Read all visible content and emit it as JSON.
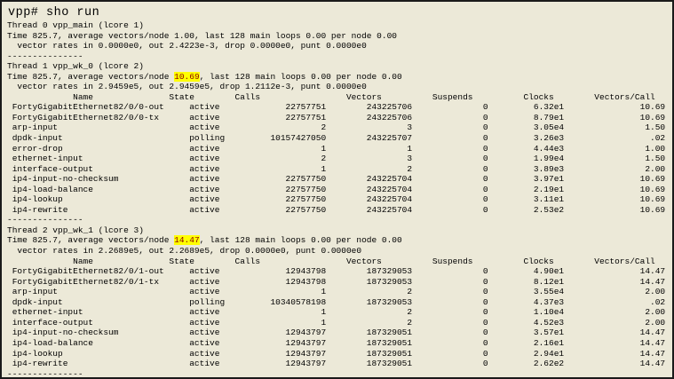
{
  "terminal": {
    "prompt_line": "vpp# sho run",
    "colors": {
      "background": "#ece9d8",
      "text": "#000000",
      "border": "#1a1a1a",
      "highlight_bg": "#ffff00",
      "highlight_text": "#8b0000"
    },
    "separator": "---------------",
    "table_headers": [
      "Name",
      "State",
      "Calls",
      "Vectors",
      "Suspends",
      "Clocks",
      "Vectors/Call"
    ],
    "threads": [
      {
        "title": "Thread 0 vpp_main (lcore 1)",
        "time": {
          "pre": "Time 825.7, average vectors/node ",
          "value": "1.00",
          "highlighted": false,
          "post": ", last 128 main loops 0.00 per node 0.00"
        },
        "rates": "vector rates in 0.0000e0, out 2.4223e-3, drop 0.0000e0, punt 0.0000e0",
        "rows": []
      },
      {
        "title": "Thread 1 vpp_wk_0 (lcore 2)",
        "time": {
          "pre": "Time 825.7, average vectors/node ",
          "value": "10.69",
          "highlighted": true,
          "post": ", last 128 main loops 0.00 per node 0.00"
        },
        "rates": "vector rates in 2.9459e5, out 2.9459e5, drop 1.2112e-3, punt 0.0000e0",
        "rows": [
          [
            "FortyGigabitEthernet82/0/0-out",
            "active",
            "22757751",
            "243225706",
            "0",
            "6.32e1",
            "10.69"
          ],
          [
            "FortyGigabitEthernet82/0/0-tx",
            "active",
            "22757751",
            "243225706",
            "0",
            "8.79e1",
            "10.69"
          ],
          [
            "arp-input",
            "active",
            "2",
            "3",
            "0",
            "3.05e4",
            "1.50"
          ],
          [
            "dpdk-input",
            "polling",
            "10157427050",
            "243225707",
            "0",
            "3.26e3",
            ".02"
          ],
          [
            "error-drop",
            "active",
            "1",
            "1",
            "0",
            "4.44e3",
            "1.00"
          ],
          [
            "ethernet-input",
            "active",
            "2",
            "3",
            "0",
            "1.99e4",
            "1.50"
          ],
          [
            "interface-output",
            "active",
            "1",
            "2",
            "0",
            "3.89e3",
            "2.00"
          ],
          [
            "ip4-input-no-checksum",
            "active",
            "22757750",
            "243225704",
            "0",
            "3.97e1",
            "10.69"
          ],
          [
            "ip4-load-balance",
            "active",
            "22757750",
            "243225704",
            "0",
            "2.19e1",
            "10.69"
          ],
          [
            "ip4-lookup",
            "active",
            "22757750",
            "243225704",
            "0",
            "3.11e1",
            "10.69"
          ],
          [
            "ip4-rewrite",
            "active",
            "22757750",
            "243225704",
            "0",
            "2.53e2",
            "10.69"
          ]
        ]
      },
      {
        "title": "Thread 2 vpp_wk_1 (lcore 3)",
        "time": {
          "pre": "Time 825.7, average vectors/node ",
          "value": "14.47",
          "highlighted": true,
          "post": ", last 128 main loops 0.00 per node 0.00"
        },
        "rates": "vector rates in 2.2689e5, out 2.2689e5, drop 0.0000e0, punt 0.0000e0",
        "rows": [
          [
            "FortyGigabitEthernet82/0/1-out",
            "active",
            "12943798",
            "187329053",
            "0",
            "4.90e1",
            "14.47"
          ],
          [
            "FortyGigabitEthernet82/0/1-tx",
            "active",
            "12943798",
            "187329053",
            "0",
            "8.12e1",
            "14.47"
          ],
          [
            "arp-input",
            "active",
            "1",
            "2",
            "0",
            "3.55e4",
            "2.00"
          ],
          [
            "dpdk-input",
            "polling",
            "10340578198",
            "187329053",
            "0",
            "4.37e3",
            ".02"
          ],
          [
            "ethernet-input",
            "active",
            "1",
            "2",
            "0",
            "1.10e4",
            "2.00"
          ],
          [
            "interface-output",
            "active",
            "1",
            "2",
            "0",
            "4.52e3",
            "2.00"
          ],
          [
            "ip4-input-no-checksum",
            "active",
            "12943797",
            "187329051",
            "0",
            "3.57e1",
            "14.47"
          ],
          [
            "ip4-load-balance",
            "active",
            "12943797",
            "187329051",
            "0",
            "2.16e1",
            "14.47"
          ],
          [
            "ip4-lookup",
            "active",
            "12943797",
            "187329051",
            "0",
            "2.94e1",
            "14.47"
          ],
          [
            "ip4-rewrite",
            "active",
            "12943797",
            "187329051",
            "0",
            "2.62e2",
            "14.47"
          ]
        ]
      }
    ]
  }
}
